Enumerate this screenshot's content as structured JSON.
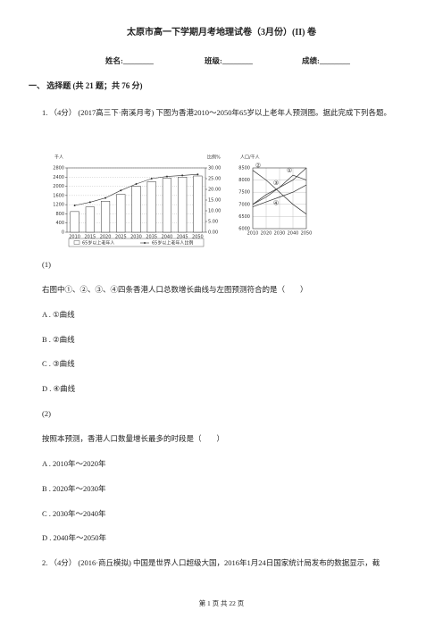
{
  "header": {
    "title": "太原市高一下学期月考地理试卷（3月份）(II) 卷",
    "fields": [
      "姓名:________",
      "班级:________",
      "成绩:________"
    ]
  },
  "section": {
    "title": "一、 选择题 (共 21 题；共 76 分)"
  },
  "questions": [
    {
      "number": "1.",
      "score": "（4分）",
      "source": "(2017高三下·南溪月考)",
      "text": "下图为香港2010～2050年65岁以上老年人预测图。据此完成下列各题。",
      "figure": {
        "left": {
          "type": "bar",
          "y_label": "千人",
          "y2_label": "比例%",
          "categories": [
            "2010",
            "2015",
            "2020",
            "2025",
            "2030",
            "2035",
            "2040",
            "2045",
            "2050"
          ],
          "ylim": [
            0,
            2800
          ],
          "yticks": [
            0,
            400,
            800,
            1200,
            1600,
            2000,
            2400,
            2800
          ],
          "y2lim": [
            0,
            30
          ],
          "y2ticks": [
            {
              "value": 0,
              "label": "0.00"
            },
            {
              "value": 5,
              "label": "5.00"
            },
            {
              "value": 10,
              "label": "10.00"
            },
            {
              "value": 15,
              "label": "15.00"
            },
            {
              "value": 20,
              "label": "20.00"
            },
            {
              "value": 25,
              "label": "25.00"
            },
            {
              "value": 30,
              "label": "30.00"
            }
          ],
          "series": [
            {
              "name": "65岁以上老年人",
              "type": "bar",
              "color": "#ffffff",
              "values": [
                900,
                1100,
                1350,
                1650,
                2000,
                2200,
                2350,
                2400,
                2450
              ]
            },
            {
              "name": "65岁以上老年人比例",
              "type": "line",
              "axis": "y2",
              "color": "#333333",
              "values": [
                12.5,
                14,
                16,
                19.5,
                22.5,
                25,
                26,
                26.5,
                27
              ]
            }
          ]
        },
        "right": {
          "type": "line",
          "y_label": "人口/千人",
          "x": [
            2010,
            2020,
            2030,
            2040,
            2050
          ],
          "xlim": [
            2010,
            2050
          ],
          "xticks": [
            2010,
            2020,
            2030,
            2040,
            2050
          ],
          "ylim": [
            6000,
            8500
          ],
          "yticks": [
            6000,
            6500,
            7000,
            7500,
            8000,
            8500
          ],
          "series": [
            {
              "name": "①",
              "color": "#333333",
              "values": [
                7000,
                7300,
                7700,
                8200,
                8000
              ]
            },
            {
              "name": "②",
              "color": "#333333",
              "values": [
                8400,
                8000,
                7500,
                7000,
                6600
              ]
            },
            {
              "name": "③",
              "color": "#333333",
              "values": [
                7000,
                7400,
                7700,
                8000,
                8500
              ]
            },
            {
              "name": "④",
              "color": "#333333",
              "values": [
                6900,
                7100,
                7300,
                7500,
                7800
              ]
            }
          ]
        }
      },
      "sub_questions": [
        {
          "label": "(1)",
          "stem": "右图中①、②、③、④四条香港人口总数增长曲线与左图预测符合的是（　　）",
          "options": [
            "A . ①曲线",
            "B . ②曲线",
            "C . ③曲线",
            "D . ④曲线"
          ]
        },
        {
          "label": "(2)",
          "stem": "按照本预测，香港人口数量增长最多的时段是（　　）",
          "options": [
            "A . 2010年～2020年",
            "B . 2020年～2030年",
            "C . 2030年～2040年",
            "D . 2040年～2050年"
          ]
        }
      ]
    },
    {
      "number": "2.",
      "score": "（4分）",
      "source": "(2016·商丘模拟)",
      "text": "中国是世界人口超级大国，2016年1月24日国家统计局发布的数据显示，截"
    }
  ],
  "footer": {
    "page": "第 1 页 共 22 页"
  }
}
